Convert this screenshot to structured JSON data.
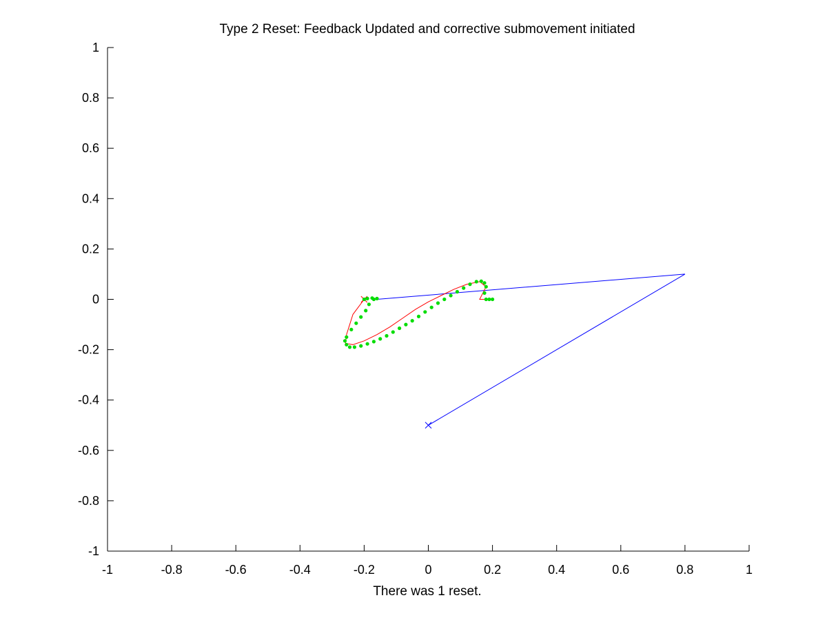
{
  "chart_data": {
    "type": "line",
    "title": "Type 2 Reset: Feedback Updated and corrective submovement initiated",
    "xlabel": "There was 1 reset.",
    "ylabel": "",
    "xlim": [
      -1,
      1
    ],
    "ylim": [
      -1,
      1
    ],
    "x_ticks": [
      -1,
      -0.8,
      -0.6,
      -0.4,
      -0.2,
      0,
      0.2,
      0.4,
      0.6,
      0.8,
      1
    ],
    "y_ticks": [
      -1,
      -0.8,
      -0.6,
      -0.4,
      -0.2,
      0,
      0.2,
      0.4,
      0.6,
      0.8,
      1
    ],
    "x_tick_labels": [
      "-1",
      "-0.8",
      "-0.6",
      "-0.4",
      "-0.2",
      "0",
      "0.2",
      "0.4",
      "0.6",
      "0.8",
      "1"
    ],
    "y_tick_labels": [
      "-1",
      "-0.8",
      "-0.6",
      "-0.4",
      "-0.2",
      "0",
      "0.2",
      "0.4",
      "0.6",
      "0.8",
      "1"
    ],
    "grid": false,
    "legend": "none",
    "series": [
      {
        "color": "#0000ff",
        "style": "line",
        "x": [
          0,
          0.8,
          -0.16
        ],
        "y": [
          -0.5,
          0.1,
          0.0
        ]
      },
      {
        "color": "#0000ff",
        "style": "marker-x",
        "x": [
          0
        ],
        "y": [
          -0.5
        ]
      },
      {
        "color": "#ff0000",
        "style": "line",
        "x": [
          0.2,
          0.16,
          0.18,
          0.16,
          0.12,
          0.08,
          0.04,
          0.0,
          -0.04,
          -0.08,
          -0.12,
          -0.16,
          -0.2,
          -0.235,
          -0.258,
          -0.255,
          -0.235,
          -0.2
        ],
        "y": [
          0.0,
          0.0,
          0.05,
          0.07,
          0.06,
          0.04,
          0.015,
          -0.01,
          -0.04,
          -0.075,
          -0.11,
          -0.14,
          -0.165,
          -0.18,
          -0.175,
          -0.14,
          -0.06,
          0.0
        ]
      },
      {
        "color": "#ff0000",
        "style": "marker-x",
        "x": [
          -0.2
        ],
        "y": [
          0.0
        ]
      },
      {
        "color": "#00dd00",
        "style": "dots",
        "x": [
          0.2,
          0.19,
          0.18,
          0.175,
          0.18,
          0.175,
          0.165,
          0.15,
          0.13,
          0.11,
          0.09,
          0.07,
          0.05,
          0.03,
          0.01,
          -0.01,
          -0.03,
          -0.05,
          -0.07,
          -0.09,
          -0.11,
          -0.13,
          -0.15,
          -0.17,
          -0.19,
          -0.21,
          -0.23,
          -0.245,
          -0.255,
          -0.26,
          -0.255,
          -0.24,
          -0.225,
          -0.21,
          -0.195,
          -0.185,
          -0.17,
          -0.16,
          -0.175,
          -0.19,
          -0.2
        ],
        "y": [
          0.0,
          0.0,
          0.0,
          0.025,
          0.05,
          0.065,
          0.072,
          0.07,
          0.06,
          0.045,
          0.03,
          0.015,
          -0.0,
          -0.015,
          -0.032,
          -0.05,
          -0.068,
          -0.085,
          -0.1,
          -0.115,
          -0.13,
          -0.145,
          -0.157,
          -0.168,
          -0.177,
          -0.185,
          -0.19,
          -0.19,
          -0.18,
          -0.165,
          -0.15,
          -0.12,
          -0.095,
          -0.07,
          -0.045,
          -0.02,
          0.0,
          0.003,
          0.005,
          0.003,
          0.0
        ]
      }
    ]
  }
}
